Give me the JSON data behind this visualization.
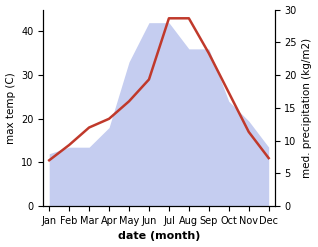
{
  "months": [
    "Jan",
    "Feb",
    "Mar",
    "Apr",
    "May",
    "Jun",
    "Jul",
    "Aug",
    "Sep",
    "Oct",
    "Nov",
    "Dec"
  ],
  "temperature": [
    10.5,
    14.0,
    18.0,
    20.0,
    24.0,
    29.0,
    43.0,
    43.0,
    35.0,
    26.0,
    17.0,
    11.0
  ],
  "precipitation": [
    8.0,
    9.0,
    9.0,
    12.0,
    22.0,
    28.0,
    28.0,
    24.0,
    24.0,
    16.0,
    13.0,
    9.0
  ],
  "temp_color": "#c0392b",
  "precip_color": "#c5cdf0",
  "ylabel_left": "max temp (C)",
  "ylabel_right": "med. precipitation (kg/m2)",
  "xlabel": "date (month)",
  "ylim_left": [
    0,
    45
  ],
  "ylim_right": [
    0,
    30
  ],
  "yticks_left": [
    0,
    10,
    20,
    30,
    40
  ],
  "yticks_right": [
    0,
    5,
    10,
    15,
    20,
    25,
    30
  ],
  "background_color": "#ffffff",
  "temp_linewidth": 1.8,
  "xlabel_fontsize": 8,
  "ylabel_fontsize": 7.5,
  "tick_fontsize": 7
}
